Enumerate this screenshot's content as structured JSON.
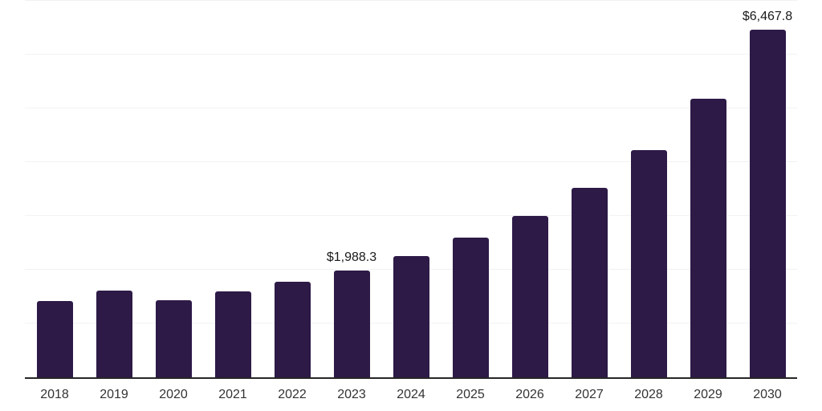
{
  "chart_data": {
    "type": "bar",
    "title": "",
    "xlabel": "",
    "ylabel": "",
    "categories": [
      "2018",
      "2019",
      "2020",
      "2021",
      "2022",
      "2023",
      "2024",
      "2025",
      "2026",
      "2027",
      "2028",
      "2029",
      "2030"
    ],
    "values": [
      1425,
      1610,
      1440,
      1600,
      1770,
      1988.3,
      2260,
      2590,
      2995,
      3520,
      4230,
      5175,
      6467.8
    ],
    "data_labels": {
      "2023": "$1,988.3",
      "2030": "$6,467.8"
    },
    "ylim": [
      0,
      7000
    ],
    "gridline_values": [
      1000,
      2000,
      3000,
      4000,
      5000,
      6000,
      7000
    ],
    "grid_on": true,
    "legend": "none",
    "colors": {
      "bar": "#2d1a47",
      "gridline": "#f2f2f2",
      "axis_line": "#262626",
      "data_label_text": "#1a1a1a",
      "tick_label_text": "#333333",
      "background": "#ffffff"
    }
  }
}
